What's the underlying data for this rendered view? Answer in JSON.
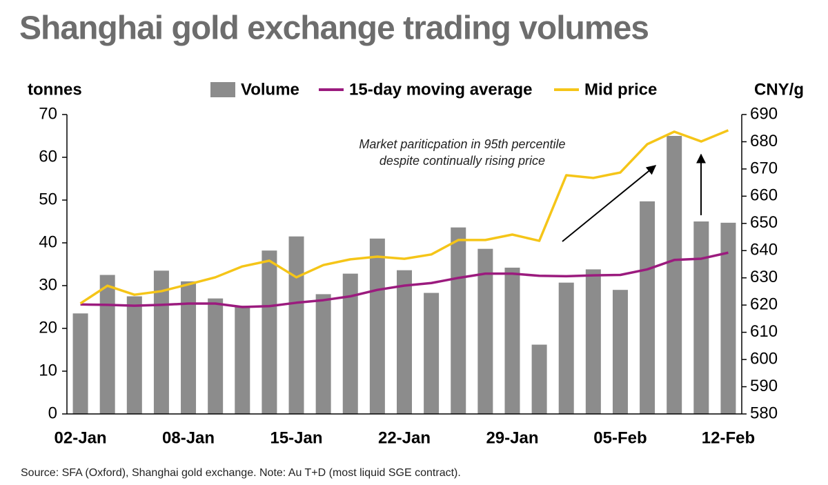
{
  "chart_data": {
    "type": "bar",
    "title": "Shanghai gold exchange trading volumes",
    "ylabel": "tonnes",
    "y2label": "CNY/g",
    "annotation": [
      "Market pariticpation in 95th percentile",
      "despite continually rising price"
    ],
    "source": "Source: SFA (Oxford), Shanghai gold exchange. Note: Au T+D (most liquid SGE contract).",
    "categories": [
      "02-Jan",
      null,
      null,
      null,
      "08-Jan",
      null,
      null,
      null,
      "15-Jan",
      null,
      null,
      null,
      "22-Jan",
      null,
      null,
      null,
      "29-Jan",
      null,
      null,
      null,
      "05-Feb",
      null,
      null,
      null,
      "12-Feb"
    ],
    "series": [
      {
        "name": "Volume",
        "type": "bar",
        "color": "#8c8c8c",
        "values": [
          23.5,
          32.5,
          27.5,
          33.5,
          31,
          27,
          25.3,
          38.2,
          41.5,
          28,
          32.8,
          41,
          33.6,
          28.3,
          43.6,
          38.6,
          34.2,
          16.2,
          30.7,
          33.8,
          29,
          49.7,
          65,
          45,
          44.7
        ]
      },
      {
        "name": "15-day moving average",
        "type": "line",
        "color": "#9b1b7e",
        "values": [
          25.6,
          25.5,
          25.3,
          25.5,
          25.8,
          25.8,
          25.0,
          25.2,
          26.0,
          26.6,
          27.5,
          29.0,
          30.0,
          30.6,
          31.8,
          32.8,
          32.8,
          32.3,
          32.2,
          32.4,
          32.5,
          33.8,
          36.0,
          36.3,
          37.7
        ]
      },
      {
        "name": "Mid price",
        "type": "line",
        "color": "#f5c518",
        "axis": "y2",
        "values": [
          620.6,
          627.1,
          623.8,
          625.1,
          627.6,
          630.2,
          634.2,
          636.3,
          630.2,
          634.7,
          636.8,
          637.8,
          637.0,
          638.6,
          643.9,
          643.9,
          645.9,
          643.6,
          667.7,
          666.7,
          668.7,
          679.1,
          683.7,
          680.1,
          684.2
        ]
      }
    ],
    "ylim": [
      0,
      70
    ],
    "yticks": [
      0,
      10,
      20,
      30,
      40,
      50,
      60,
      70
    ],
    "y2lim": [
      580,
      690
    ],
    "y2ticks": [
      580,
      590,
      600,
      610,
      620,
      630,
      640,
      650,
      660,
      670,
      680,
      690
    ]
  }
}
